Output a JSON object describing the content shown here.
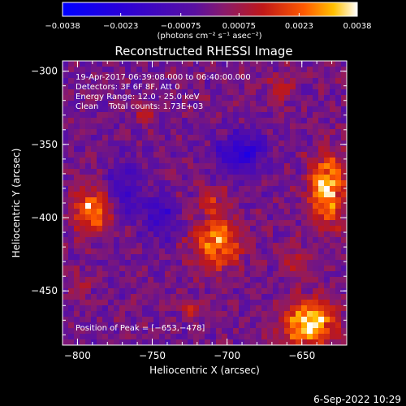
{
  "chart_data": {
    "type": "heatmap",
    "title": "Reconstructed RHESSI Image",
    "xlabel": "Heliocentric X (arcsec)",
    "ylabel": "Heliocentric Y (arcsec)",
    "xlim": [
      -810,
      -620
    ],
    "ylim": [
      -487,
      -293
    ],
    "x_ticks": [
      {
        "value": -800,
        "label": "−800"
      },
      {
        "value": -750,
        "label": "−750"
      },
      {
        "value": -700,
        "label": "−700"
      },
      {
        "value": -650,
        "label": "−650"
      }
    ],
    "y_ticks": [
      {
        "value": -300,
        "label": "−300"
      },
      {
        "value": -350,
        "label": "−350"
      },
      {
        "value": -400,
        "label": "−400"
      },
      {
        "value": -450,
        "label": "−450"
      }
    ],
    "colorbar": {
      "range": [
        -0.0038,
        0.0038
      ],
      "ticks": [
        {
          "value": -0.0038,
          "label": "−0.0038"
        },
        {
          "value": -0.0023,
          "label": "−0.0023"
        },
        {
          "value": -0.00075,
          "label": "−0.00075"
        },
        {
          "value": 0.00075,
          "label": "0.00075"
        },
        {
          "value": 0.0023,
          "label": "0.0023"
        },
        {
          "value": 0.0038,
          "label": "0.0038"
        }
      ],
      "units_label": "(photons cm⁻² s⁻¹ asec⁻²)"
    },
    "annotations": [
      "19-Apr-2017 06:39:08.000 to 06:40:00.000",
      "Detectors: 3F 6F 8F, Att 0",
      "Energy Range: 12.0 - 25.0 keV",
      "Clean    Total counts: 1.73E+03"
    ],
    "peak_label": "Position of Peak = [−653,−478]",
    "peak_position": [
      -653,
      -478
    ],
    "sources": [
      {
        "x": -790,
        "y": -395,
        "rx": 13,
        "ry": 15,
        "value": 0.0028
      },
      {
        "x": -707,
        "y": -417,
        "rx": 16,
        "ry": 17,
        "value": 0.003
      },
      {
        "x": -710,
        "y": -388,
        "rx": 10,
        "ry": 9,
        "value": 0.0014
      },
      {
        "x": -633,
        "y": -382,
        "rx": 12,
        "ry": 24,
        "value": 0.0033
      },
      {
        "x": -645,
        "y": -472,
        "rx": 18,
        "ry": 15,
        "value": 0.0038
      },
      {
        "x": -655,
        "y": -430,
        "rx": 9,
        "ry": 10,
        "value": 0.0012
      },
      {
        "x": -755,
        "y": -330,
        "rx": 7,
        "ry": 7,
        "value": 0.0012
      },
      {
        "x": -665,
        "y": -312,
        "rx": 9,
        "ry": 9,
        "value": 0.0012
      },
      {
        "x": -798,
        "y": -445,
        "rx": 9,
        "ry": 8,
        "value": 0.001
      },
      {
        "x": -725,
        "y": -462,
        "rx": 8,
        "ry": 7,
        "value": 0.001
      },
      {
        "x": -770,
        "y": -380,
        "rx": 10,
        "ry": 20,
        "value": -0.0016
      },
      {
        "x": -690,
        "y": -355,
        "rx": 16,
        "ry": 14,
        "value": -0.002
      },
      {
        "x": -745,
        "y": -400,
        "rx": 12,
        "ry": 14,
        "value": -0.0018
      }
    ],
    "grid": false
  },
  "footer": {
    "date": "6-Sep-2022 10:29"
  },
  "colors": {
    "background": "#000000",
    "foreground": "#ffffff"
  }
}
